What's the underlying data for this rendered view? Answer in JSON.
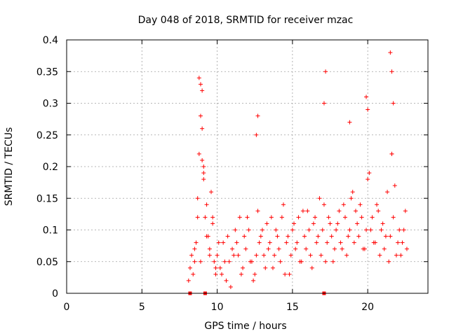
{
  "chart_data": {
    "type": "scatter",
    "title": "Day 048 of 2018, SRMTID for receiver mzac",
    "xlabel": "GPS time / hours",
    "ylabel": "SRMTID / TECUs",
    "xlim": [
      0,
      24
    ],
    "ylim": [
      0,
      0.4
    ],
    "x_ticks": [
      0,
      5,
      10,
      15,
      20
    ],
    "y_ticks": [
      0,
      0.05,
      0.1,
      0.15,
      0.2,
      0.25,
      0.3,
      0.35,
      0.4
    ],
    "x_tick_labels": [
      "0",
      "5",
      "10",
      "15",
      "20"
    ],
    "y_tick_labels": [
      "0",
      "0.05",
      "0.1",
      "0.15",
      "0.2",
      "0.25",
      "0.3",
      "0.35",
      "0.4"
    ],
    "grid": true,
    "marker": "+",
    "color": "#ff0000",
    "series": [
      {
        "name": "SRMTID",
        "x": [
          8.1,
          8.2,
          8.3,
          8.4,
          8.5,
          8.6,
          8.7,
          8.8,
          8.9,
          9.0,
          9.1,
          9.2,
          9.3,
          9.4,
          9.5,
          9.6,
          9.7,
          9.8,
          9.9,
          10.0,
          10.2,
          10.4,
          10.6,
          10.8,
          11.0,
          11.2,
          11.4,
          11.6,
          11.8,
          12.0,
          12.2,
          12.4,
          12.6,
          12.8,
          13.0,
          13.2,
          13.4,
          13.6,
          13.8,
          14.0,
          14.2,
          14.4,
          14.6,
          14.8,
          15.0,
          15.2,
          15.4,
          15.6,
          15.8,
          16.0,
          16.2,
          16.4,
          16.6,
          16.8,
          17.0,
          17.2,
          17.4,
          17.6,
          17.8,
          18.0,
          18.2,
          18.4,
          18.6,
          18.8,
          19.0,
          19.2,
          19.4,
          19.6,
          19.8,
          20.0,
          20.2,
          20.4,
          20.6,
          20.8,
          21.0,
          21.2,
          21.4,
          21.6,
          21.8,
          22.0,
          22.2,
          22.4,
          22.6,
          8.5,
          8.7,
          8.9,
          9.1,
          9.3,
          9.5,
          9.7,
          9.9,
          10.1,
          10.3,
          10.5,
          10.7,
          10.9,
          11.1,
          11.3,
          11.5,
          11.7,
          11.9,
          12.1,
          12.3,
          12.5,
          12.7,
          12.9,
          13.1,
          13.3,
          13.5,
          13.7,
          13.9,
          14.1,
          14.3,
          14.5,
          14.7,
          14.9,
          15.1,
          15.3,
          15.5,
          15.7,
          15.9,
          16.1,
          16.3,
          16.5,
          16.7,
          16.9,
          17.1,
          17.3,
          17.5,
          17.7,
          17.9,
          18.1,
          18.3,
          18.5,
          18.7,
          18.9,
          19.1,
          19.3,
          19.5,
          19.7,
          19.9,
          20.1,
          20.3,
          20.5,
          20.7,
          20.9,
          21.1,
          21.3,
          21.5,
          21.7,
          21.9,
          22.1,
          22.3,
          22.5,
          8.8,
          8.9,
          9.0,
          9.0,
          9.1,
          12.7,
          12.6,
          17.2,
          17.1,
          18.8,
          19.9,
          20.0,
          21.5,
          21.6,
          21.7,
          21.6
        ],
        "y": [
          0.02,
          0.04,
          0.06,
          0.03,
          0.05,
          0.08,
          0.15,
          0.22,
          0.28,
          0.32,
          0.18,
          0.12,
          0.14,
          0.09,
          0.07,
          0.16,
          0.12,
          0.05,
          0.03,
          0.06,
          0.04,
          0.08,
          0.02,
          0.05,
          0.07,
          0.1,
          0.06,
          0.03,
          0.09,
          0.12,
          0.05,
          0.02,
          0.06,
          0.08,
          0.1,
          0.04,
          0.07,
          0.12,
          0.06,
          0.09,
          0.05,
          0.14,
          0.08,
          0.03,
          0.1,
          0.07,
          0.12,
          0.05,
          0.09,
          0.13,
          0.06,
          0.11,
          0.08,
          0.15,
          0.1,
          0.05,
          0.12,
          0.09,
          0.07,
          0.11,
          0.08,
          0.14,
          0.06,
          0.1,
          0.16,
          0.13,
          0.09,
          0.12,
          0.07,
          0.18,
          0.1,
          0.08,
          0.14,
          0.06,
          0.11,
          0.09,
          0.05,
          0.22,
          0.17,
          0.08,
          0.06,
          0.1,
          0.07,
          0.07,
          0.12,
          0.05,
          0.2,
          0.09,
          0.06,
          0.11,
          0.04,
          0.08,
          0.03,
          0.05,
          0.09,
          0.01,
          0.06,
          0.08,
          0.12,
          0.04,
          0.07,
          0.1,
          0.05,
          0.03,
          0.13,
          0.09,
          0.06,
          0.11,
          0.08,
          0.04,
          0.1,
          0.07,
          0.12,
          0.03,
          0.09,
          0.06,
          0.11,
          0.08,
          0.05,
          0.13,
          0.07,
          0.1,
          0.04,
          0.12,
          0.09,
          0.06,
          0.14,
          0.08,
          0.11,
          0.05,
          0.1,
          0.13,
          0.07,
          0.12,
          0.09,
          0.15,
          0.08,
          0.11,
          0.14,
          0.07,
          0.1,
          0.19,
          0.12,
          0.08,
          0.13,
          0.1,
          0.07,
          0.16,
          0.09,
          0.12,
          0.06,
          0.1,
          0.08,
          0.13,
          0.34,
          0.33,
          0.26,
          0.21,
          0.19,
          0.28,
          0.25,
          0.35,
          0.3,
          0.27,
          0.31,
          0.29,
          0.38,
          0.35,
          0.3,
          0.22
        ]
      }
    ],
    "x_axis_markers": [
      8.2,
      9.2,
      17.1
    ]
  }
}
